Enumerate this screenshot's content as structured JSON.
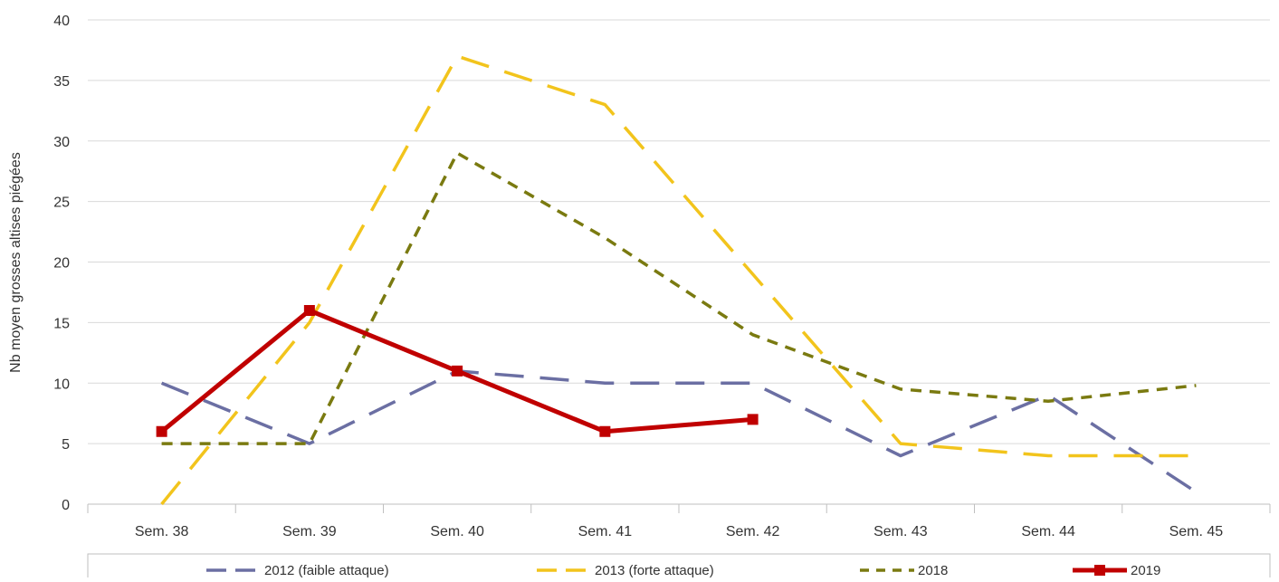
{
  "chart_data": {
    "type": "line",
    "title": "",
    "xlabel": "",
    "ylabel": "Nb moyen grosses altises piégées",
    "categories": [
      "Sem. 38",
      "Sem. 39",
      "Sem. 40",
      "Sem. 41",
      "Sem. 42",
      "Sem. 43",
      "Sem. 44",
      "Sem. 45"
    ],
    "ylim": [
      0,
      40
    ],
    "yticks": [
      0,
      5,
      10,
      15,
      20,
      25,
      30,
      35,
      40
    ],
    "grid": true,
    "legend_position": "bottom",
    "series": [
      {
        "name": "2012 (faible attaque)",
        "color": "#6b6fa3",
        "style": "long-dash",
        "marker": "none",
        "values": [
          10,
          5,
          11,
          10,
          10,
          4,
          9,
          1
        ]
      },
      {
        "name": "2013 (forte attaque)",
        "color": "#f2c41c",
        "style": "long-dash",
        "marker": "none",
        "values": [
          0,
          15,
          37,
          33,
          19,
          5,
          4,
          4
        ]
      },
      {
        "name": "2018",
        "color": "#7a7a10",
        "style": "short-dash",
        "marker": "none",
        "values": [
          5,
          5,
          29,
          22,
          14,
          9.5,
          8.5,
          9.8
        ]
      },
      {
        "name": "2019",
        "color": "#c00000",
        "style": "solid",
        "marker": "square",
        "values": [
          6,
          16,
          11,
          6,
          7,
          null,
          null,
          null
        ]
      }
    ]
  }
}
